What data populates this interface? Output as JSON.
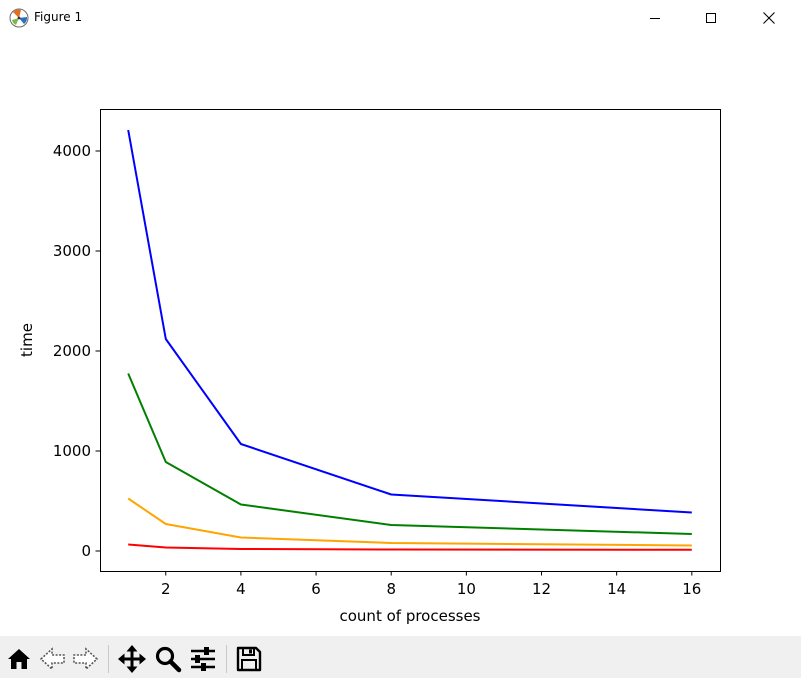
{
  "window": {
    "title": "Figure 1",
    "app_icon": "matplotlib-icon",
    "controls": [
      "minimize-icon",
      "maximize-icon",
      "close-icon"
    ]
  },
  "toolbar": {
    "tools": [
      "home-icon",
      "back-icon",
      "forward-icon",
      "pan-icon",
      "zoom-icon",
      "configure-subplots-icon",
      "save-icon"
    ],
    "background": "#f0f0f0"
  },
  "chart_data": {
    "type": "line",
    "title": "",
    "xlabel": "count of processes",
    "ylabel": "time",
    "x": [
      1,
      2,
      4,
      8,
      16
    ],
    "xlim": [
      0.25,
      16.75
    ],
    "ylim": [
      -200,
      4420
    ],
    "xticks": [
      2,
      4,
      6,
      8,
      10,
      12,
      14,
      16
    ],
    "yticks": [
      0,
      1000,
      2000,
      3000,
      4000
    ],
    "grid": false,
    "series": [
      {
        "color": "#0000ff",
        "values": [
          4210,
          2120,
          1070,
          565,
          385
        ]
      },
      {
        "color": "#008000",
        "values": [
          1775,
          890,
          465,
          260,
          170
        ]
      },
      {
        "color": "#ffa500",
        "values": [
          525,
          270,
          135,
          80,
          55
        ]
      },
      {
        "color": "#ff0000",
        "values": [
          65,
          35,
          20,
          15,
          12
        ]
      }
    ]
  }
}
